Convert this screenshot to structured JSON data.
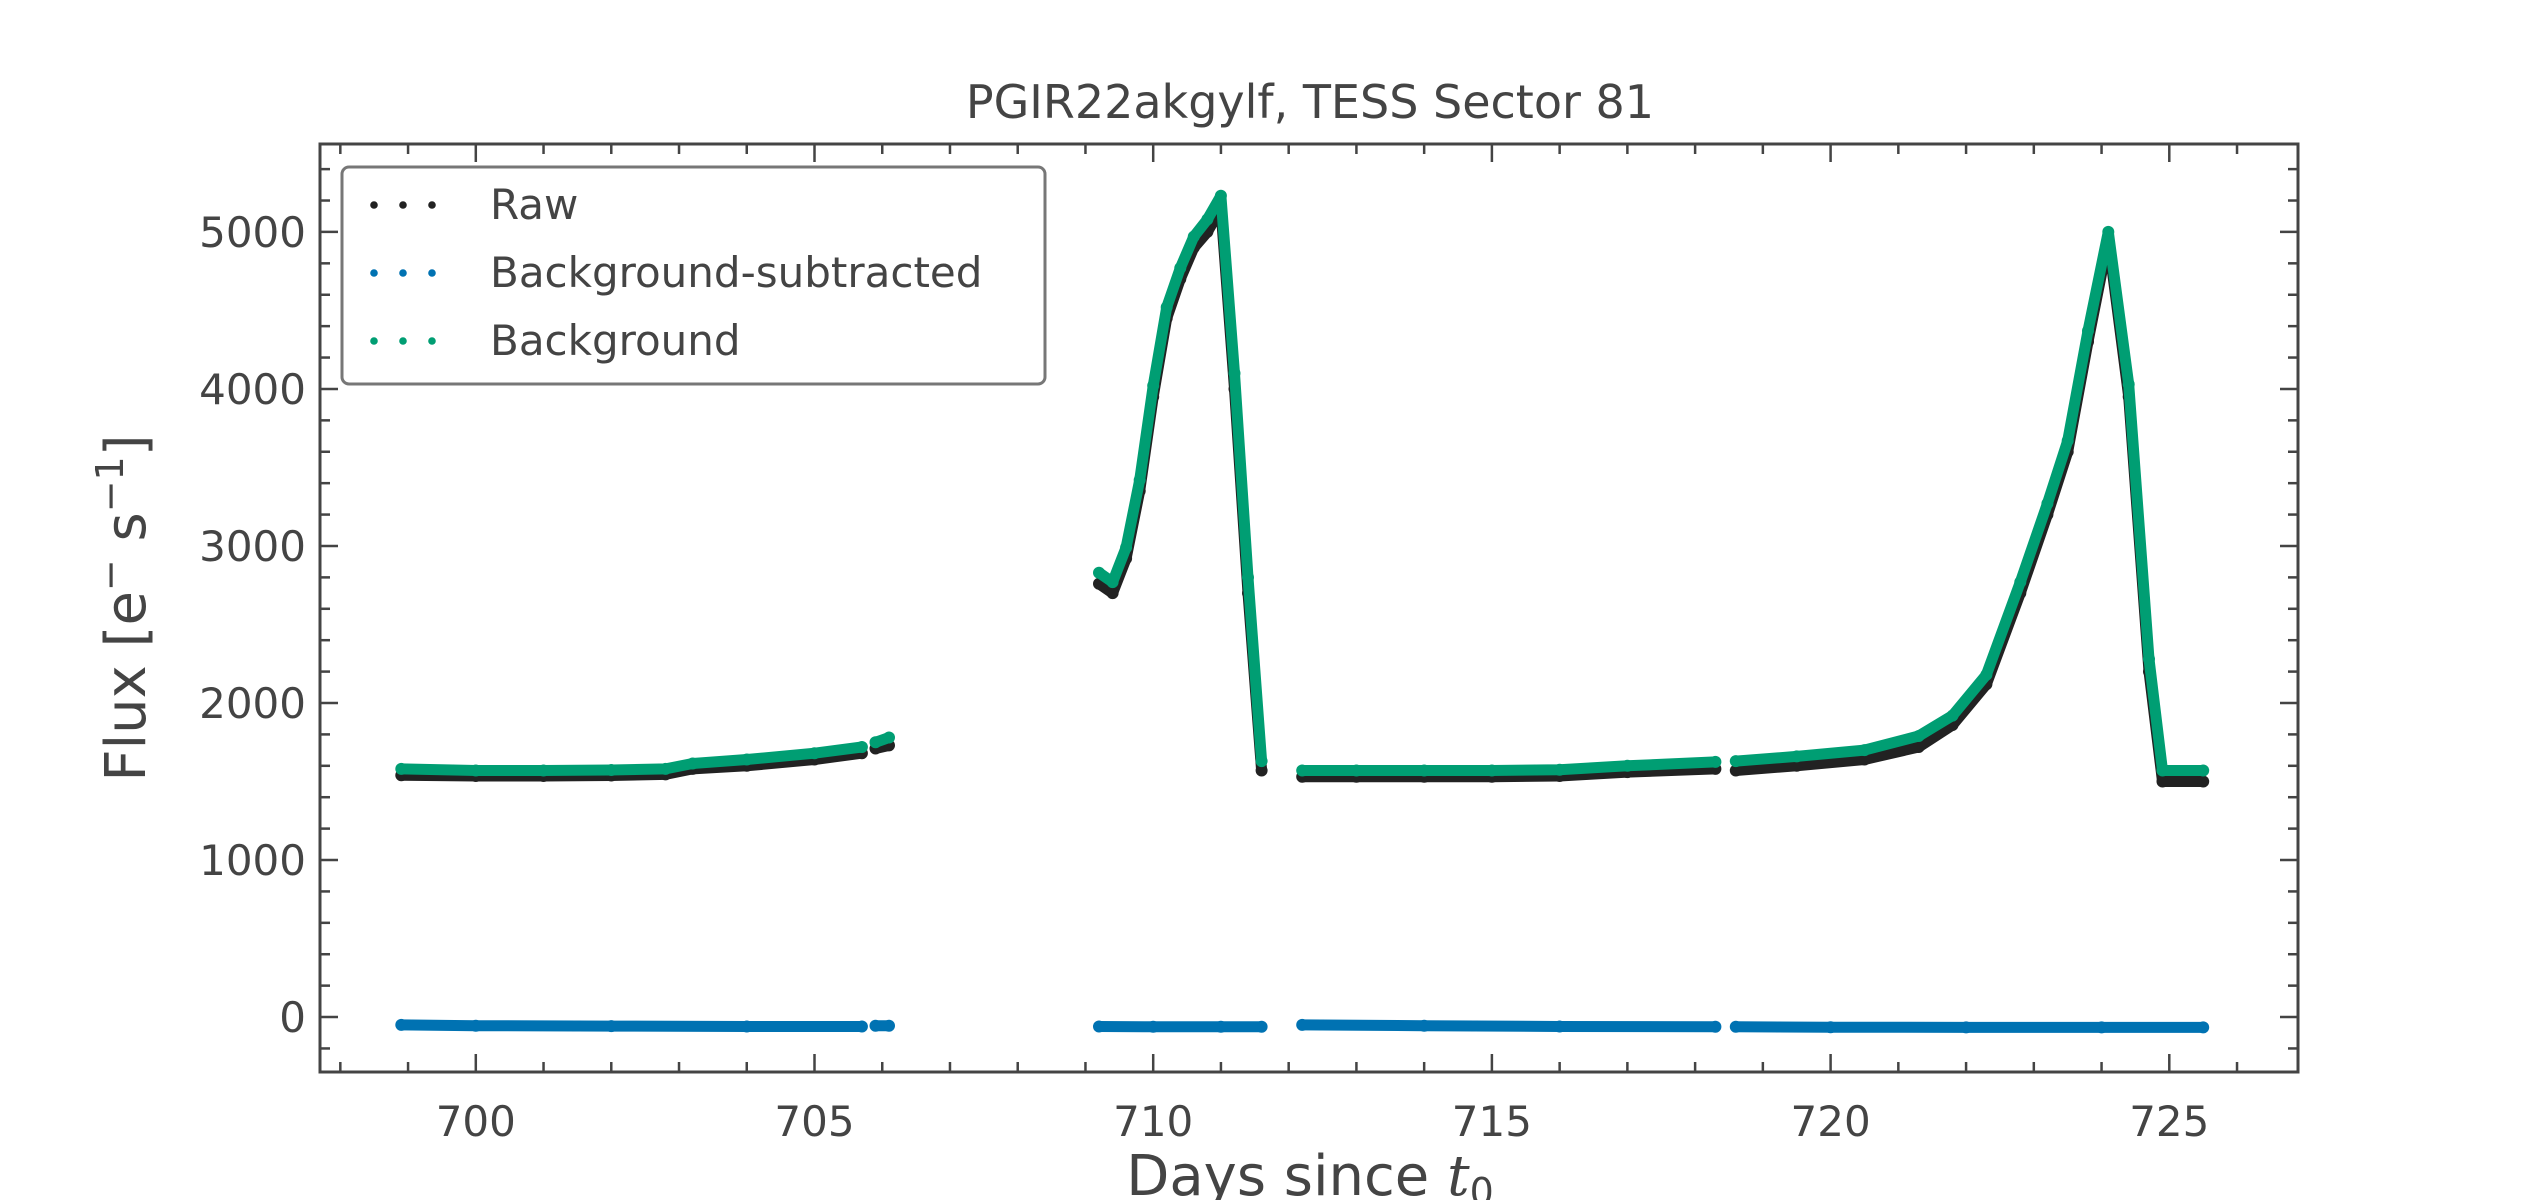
{
  "chart_data": {
    "type": "scatter",
    "title": "PGIR22akgylf, TESS Sector 81",
    "xlabel_main": "Days since ",
    "xlabel_italic": "t",
    "xlabel_sub": "0",
    "ylabel_main": "Flux [e",
    "ylabel_sup1": "−",
    "ylabel_mid": " s",
    "ylabel_sup2": "−1",
    "ylabel_end": "]",
    "xlim": [
      697.7,
      726.9
    ],
    "ylim": [
      -350,
      5560
    ],
    "xticks": [
      700,
      705,
      710,
      715,
      720,
      725
    ],
    "xtick_labels": [
      "700",
      "705",
      "710",
      "715",
      "720",
      "725"
    ],
    "yticks": [
      0,
      1000,
      2000,
      3000,
      4000,
      5000
    ],
    "ytick_labels": [
      "0",
      "1000",
      "2000",
      "3000",
      "4000",
      "5000"
    ],
    "grid": false,
    "legend_position": "top-left",
    "series": [
      {
        "name": "Raw",
        "color": "#222222",
        "segments": [
          {
            "x": [
              698.9,
              700,
              701,
              702,
              702.8,
              703.2,
              704,
              705,
              705.7
            ],
            "y": [
              1540,
              1535,
              1535,
              1538,
              1545,
              1580,
              1600,
              1640,
              1680
            ]
          },
          {
            "x": [
              705.9,
              706.1
            ],
            "y": [
              1710,
              1730
            ]
          },
          {
            "x": [
              709.2,
              709.4,
              709.6,
              709.8,
              710.0,
              710.2,
              710.4,
              710.6,
              710.8,
              711.0,
              711.2,
              711.4,
              711.6
            ],
            "y": [
              2760,
              2700,
              2920,
              3350,
              3950,
              4450,
              4700,
              4900,
              5000,
              5150,
              4000,
              2700,
              1570
            ]
          },
          {
            "x": [
              712.2,
              713,
              714,
              715,
              716,
              717,
              718.3
            ],
            "y": [
              1530,
              1530,
              1530,
              1530,
              1535,
              1560,
              1580
            ]
          },
          {
            "x": [
              718.6,
              719.5,
              720.5,
              721.3,
              721.8,
              722.3,
              722.8,
              723.2,
              723.5,
              723.8,
              724.1,
              724.4,
              724.7,
              724.9,
              725.5
            ],
            "y": [
              1570,
              1600,
              1640,
              1720,
              1860,
              2120,
              2700,
              3200,
              3600,
              4300,
              4950,
              3950,
              2200,
              1500,
              1500
            ]
          }
        ]
      },
      {
        "name": "Background-subtracted",
        "color": "#0072b2",
        "segments": [
          {
            "x": [
              698.9,
              700,
              702,
              704,
              705.7
            ],
            "y": [
              -50,
              -55,
              -58,
              -60,
              -60
            ]
          },
          {
            "x": [
              705.9,
              706.1
            ],
            "y": [
              -55,
              -55
            ]
          },
          {
            "x": [
              709.2,
              710,
              711,
              711.6
            ],
            "y": [
              -60,
              -62,
              -62,
              -62
            ]
          },
          {
            "x": [
              712.2,
              714,
              716,
              718.3
            ],
            "y": [
              -50,
              -55,
              -60,
              -62
            ]
          },
          {
            "x": [
              718.6,
              720,
              722,
              724,
              725.5
            ],
            "y": [
              -62,
              -65,
              -66,
              -66,
              -66
            ]
          }
        ]
      },
      {
        "name": "Background",
        "color": "#009e73",
        "segments": [
          {
            "x": [
              698.9,
              700,
              701,
              702,
              702.8,
              703.2,
              704,
              705,
              705.7
            ],
            "y": [
              1580,
              1570,
              1570,
              1573,
              1580,
              1615,
              1640,
              1680,
              1720
            ]
          },
          {
            "x": [
              705.9,
              706.1
            ],
            "y": [
              1750,
              1780
            ]
          },
          {
            "x": [
              709.2,
              709.4,
              709.6,
              709.8,
              710.0,
              710.2,
              710.4,
              710.6,
              710.8,
              711.0,
              711.2,
              711.4,
              711.6
            ],
            "y": [
              2830,
              2770,
              2990,
              3420,
              4020,
              4520,
              4770,
              4970,
              5080,
              5230,
              4100,
              2800,
              1630
            ]
          },
          {
            "x": [
              712.2,
              713,
              714,
              715,
              716,
              717,
              718.3
            ],
            "y": [
              1570,
              1570,
              1570,
              1570,
              1575,
              1600,
              1625
            ]
          },
          {
            "x": [
              718.6,
              719.5,
              720.5,
              721.3,
              721.8,
              722.3,
              722.8,
              723.2,
              723.5,
              723.8,
              724.1,
              724.4,
              724.7,
              724.9,
              725.5
            ],
            "y": [
              1630,
              1660,
              1700,
              1790,
              1920,
              2180,
              2770,
              3270,
              3670,
              4370,
              5000,
              4030,
              2280,
              1570,
              1570
            ]
          }
        ]
      }
    ]
  }
}
